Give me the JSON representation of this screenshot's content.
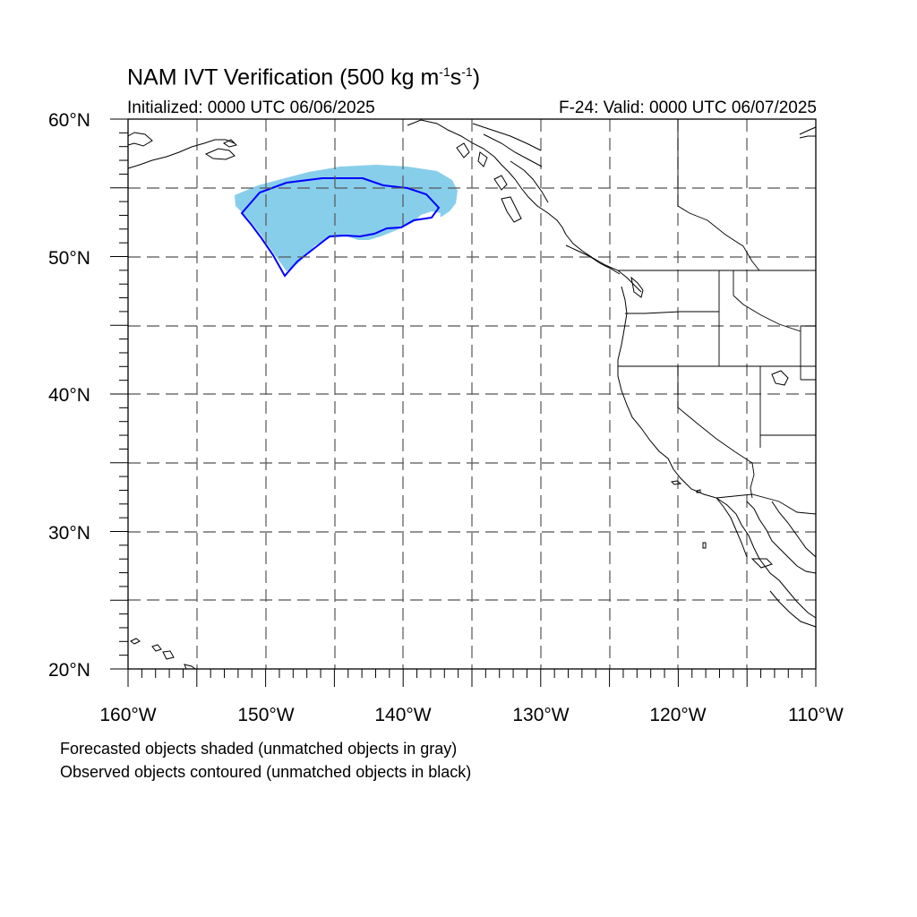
{
  "title": {
    "main": "NAM IVT Verification (500 kg m",
    "sup1": "-1",
    "mid": "s",
    "sup2": "-1",
    "end": ")"
  },
  "init_text": "Initialized: 0000 UTC 06/06/2025",
  "valid_text": "F-24: Valid: 0000 UTC 06/07/2025",
  "lat_labels": [
    "60°N",
    "50°N",
    "40°N",
    "30°N",
    "20°N"
  ],
  "lon_labels": [
    "160°W",
    "150°W",
    "140°W",
    "130°W",
    "120°W",
    "110°W"
  ],
  "legend": {
    "forecast": "Forecasted objects shaded (unmatched objects in gray)",
    "observed": "Observed objects contoured (unmatched objects in black)"
  },
  "colors": {
    "forecast_fill": "#87ceeb",
    "observed_contour": "#0000ff",
    "coastline": "#000000",
    "grid": "#555555"
  },
  "map_extent": {
    "lon_min": -160,
    "lon_max": -110,
    "lat_min": 20,
    "lat_max": 60
  },
  "objects": [
    {
      "kind": "forecast",
      "matched": true
    },
    {
      "kind": "observed",
      "matched": true
    }
  ]
}
